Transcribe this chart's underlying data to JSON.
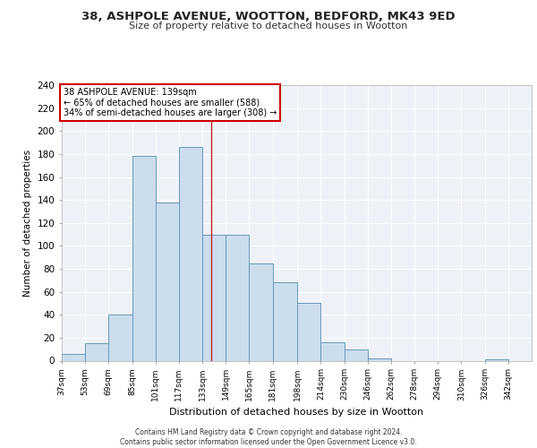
{
  "title1": "38, ASHPOLE AVENUE, WOOTTON, BEDFORD, MK43 9ED",
  "title2": "Size of property relative to detached houses in Wootton",
  "xlabel": "Distribution of detached houses by size in Wootton",
  "ylabel": "Number of detached properties",
  "bin_edges": [
    37,
    53,
    69,
    85,
    101,
    117,
    133,
    149,
    165,
    181,
    198,
    214,
    230,
    246,
    262,
    278,
    294,
    310,
    326,
    342,
    358
  ],
  "bar_heights": [
    6,
    15,
    40,
    178,
    138,
    186,
    110,
    110,
    85,
    68,
    50,
    16,
    10,
    2,
    0,
    0,
    0,
    0,
    1,
    0
  ],
  "bar_color": "#ccdded",
  "bar_edge_color": "#6699bb",
  "property_size": 139,
  "vline_color": "#cc2222",
  "annotation_text": "38 ASHPOLE AVENUE: 139sqm\n← 65% of detached houses are smaller (588)\n34% of semi-detached houses are larger (308) →",
  "annotation_box_color": "#ffffff",
  "annotation_edge_color": "#cc0000",
  "ylim": [
    0,
    240
  ],
  "yticks": [
    0,
    20,
    40,
    60,
    80,
    100,
    120,
    140,
    160,
    180,
    200,
    220,
    240
  ],
  "background_color": "#eef2f8",
  "grid_color": "#ffffff",
  "footer_line1": "Contains HM Land Registry data © Crown copyright and database right 2024.",
  "footer_line2": "Contains public sector information licensed under the Open Government Licence v3.0."
}
